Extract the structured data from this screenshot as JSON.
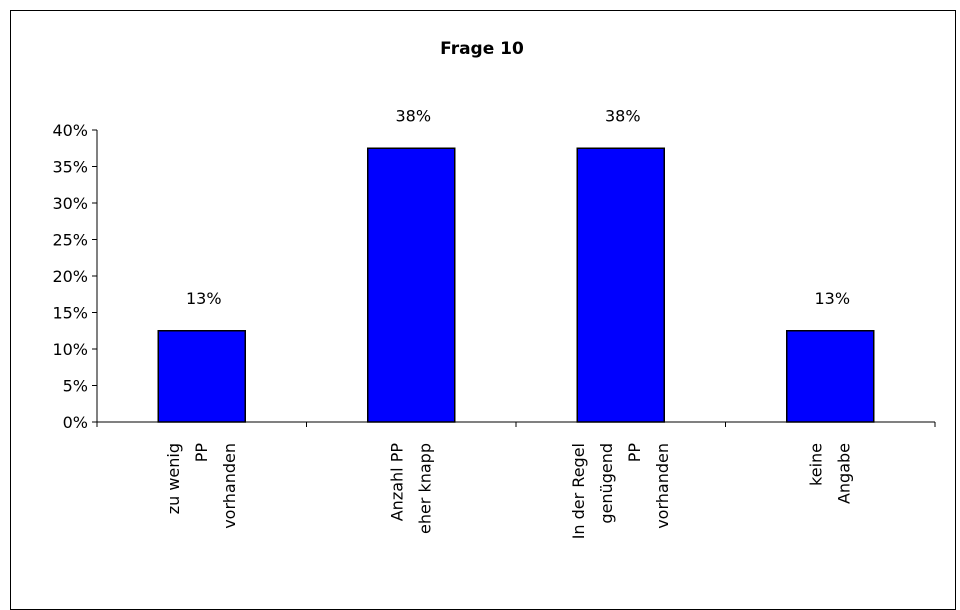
{
  "chart_data": {
    "type": "bar",
    "title": "Frage 10",
    "categories": [
      [
        "zu wenig",
        "PP",
        "vorhanden"
      ],
      [
        "Anzahl PP",
        "eher knapp"
      ],
      [
        "In der Regel",
        "genügend",
        "PP",
        "vorhanden"
      ],
      [
        "keine",
        "Angabe"
      ]
    ],
    "values": [
      12.5,
      37.5,
      37.5,
      12.5
    ],
    "data_labels": [
      "13%",
      "38%",
      "38%",
      "13%"
    ],
    "y_ticks": [
      "0%",
      "5%",
      "10%",
      "15%",
      "20%",
      "25%",
      "30%",
      "35%",
      "40%"
    ],
    "ylim": [
      0,
      40
    ],
    "xlabel": "",
    "ylabel": "",
    "grid": false,
    "legend": "none",
    "bar_color": "#0000ff",
    "bar_edge_color": "#000000"
  }
}
